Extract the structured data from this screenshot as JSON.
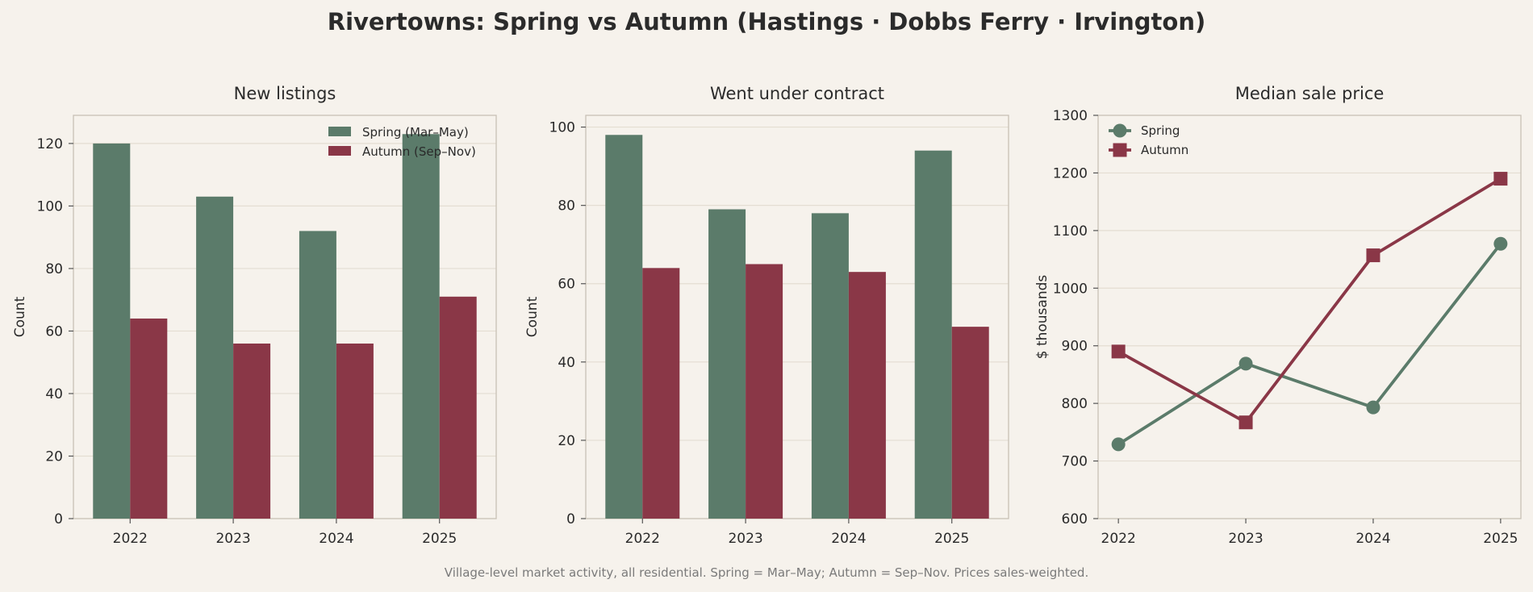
{
  "figure": {
    "title": "Rivertowns: Spring vs Autumn (Hastings · Dobbs Ferry · Irvington)",
    "footnote": "Village-level market activity, all residential. Spring = Mar–May; Autumn = Sep–Nov. Prices sales-weighted."
  },
  "colors": {
    "spring": "#5b7b6a",
    "autumn": "#8a3747",
    "background": "#f6f2ec",
    "grid": "#e4ddd2",
    "axis": "#c8c0b6"
  },
  "chart_data": [
    {
      "type": "bar",
      "title": "New listings",
      "xlabel": "",
      "ylabel": "Count",
      "categories": [
        "2022",
        "2023",
        "2024",
        "2025"
      ],
      "series": [
        {
          "name": "Spring (Mar–May)",
          "values": [
            120,
            103,
            92,
            123
          ]
        },
        {
          "name": "Autumn (Sep–Nov)",
          "values": [
            64,
            56,
            56,
            71
          ]
        }
      ],
      "ylim": [
        0,
        129
      ],
      "yticks": [
        0,
        20,
        40,
        60,
        80,
        100,
        120
      ],
      "grid": true,
      "legend": "top-right"
    },
    {
      "type": "bar",
      "title": "Went under contract",
      "xlabel": "",
      "ylabel": "Count",
      "categories": [
        "2022",
        "2023",
        "2024",
        "2025"
      ],
      "series": [
        {
          "name": "Spring (Mar–May)",
          "values": [
            98,
            79,
            78,
            94
          ]
        },
        {
          "name": "Autumn (Sep–Nov)",
          "values": [
            64,
            65,
            63,
            49
          ]
        }
      ],
      "ylim": [
        0,
        103
      ],
      "yticks": [
        0,
        20,
        40,
        60,
        80,
        100
      ],
      "grid": true,
      "legend": "none"
    },
    {
      "type": "line",
      "title": "Median sale price",
      "xlabel": "",
      "ylabel": "$ thousands",
      "categories": [
        "2022",
        "2023",
        "2024",
        "2025"
      ],
      "series": [
        {
          "name": "Spring",
          "marker": "circle",
          "values": [
            729,
            869,
            793,
            1077
          ]
        },
        {
          "name": "Autumn",
          "marker": "square",
          "values": [
            890,
            767,
            1057,
            1190
          ]
        }
      ],
      "ylim": [
        600,
        1300
      ],
      "yticks": [
        600,
        700,
        800,
        900,
        1000,
        1100,
        1200,
        1300
      ],
      "grid": true,
      "legend": "top-left"
    }
  ]
}
